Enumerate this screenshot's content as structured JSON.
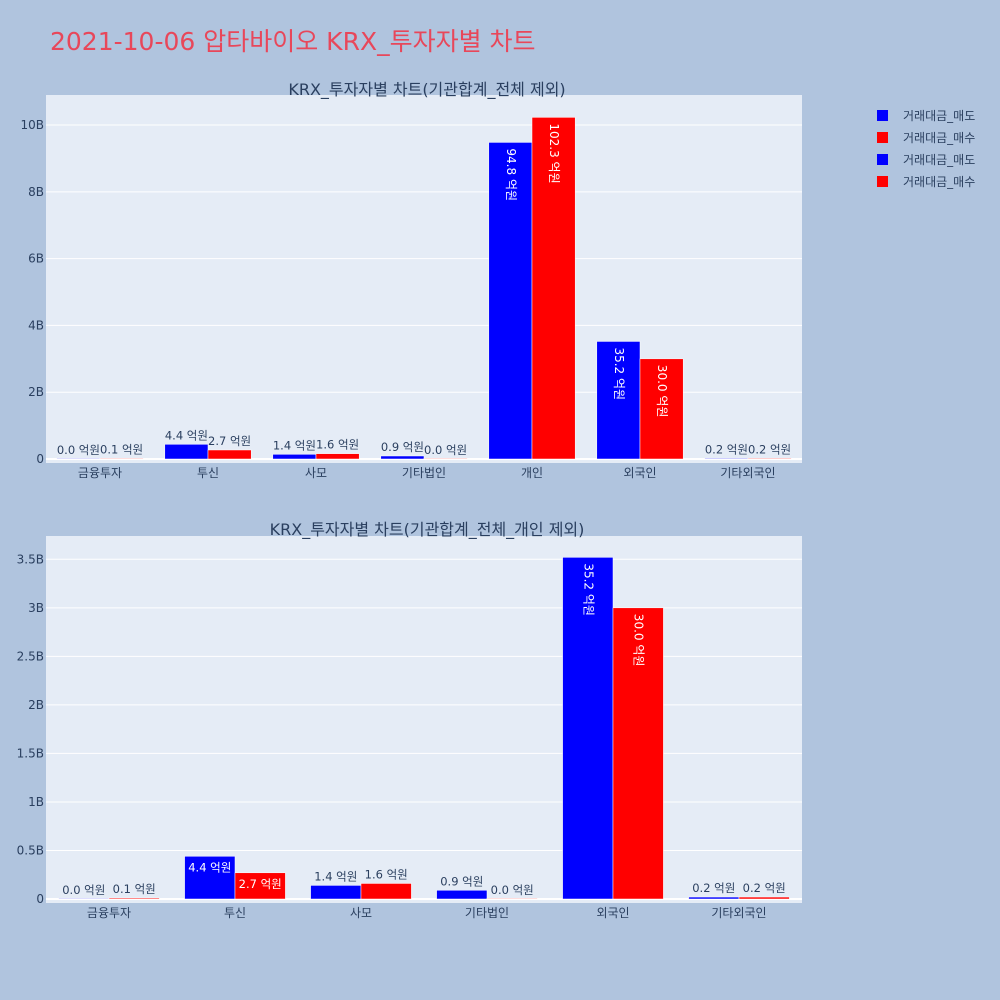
{
  "title": "2021-10-06 압타바이오 KRX_투자자별 차트",
  "colors": {
    "sell": "#0000ff",
    "buy": "#ff0000",
    "title": "#e8475a",
    "plot_bg": "#e5ecf6",
    "page_bg": "#b0c4de"
  },
  "legend": [
    {
      "label": "거래대금_매도",
      "color": "#0000ff"
    },
    {
      "label": "거래대금_매수",
      "color": "#ff0000"
    },
    {
      "label": "거래대금_매도",
      "color": "#0000ff"
    },
    {
      "label": "거래대금_매수",
      "color": "#ff0000"
    }
  ],
  "chart_data": [
    {
      "type": "bar",
      "title": "KRX_투자자별 차트(기관합계_전체 제외)",
      "categories": [
        "금융투자",
        "투신",
        "사모",
        "기타법인",
        "개인",
        "외국인",
        "기타외국인"
      ],
      "ylim": [
        0,
        10900000000
      ],
      "yticks": [
        0,
        2000000000,
        4000000000,
        6000000000,
        8000000000,
        10000000000
      ],
      "ytick_labels": [
        "0",
        "2B",
        "4B",
        "6B",
        "8B",
        "10B"
      ],
      "grid": true,
      "legend_position": "top-right",
      "series": [
        {
          "name": "거래대금_매도",
          "color": "#0000ff",
          "values": [
            0,
            440000000,
            140000000,
            90000000,
            9480000000,
            3520000000,
            20000000
          ],
          "labels": [
            "0.0 억원",
            "4.4 억원",
            "1.4 억원",
            "0.9 억원",
            "94.8 억원",
            "35.2 억원",
            "0.2 억원"
          ]
        },
        {
          "name": "거래대금_매수",
          "color": "#ff0000",
          "values": [
            10000000,
            270000000,
            160000000,
            0,
            10230000000,
            3000000000,
            20000000
          ],
          "labels": [
            "0.1 억원",
            "2.7 억원",
            "1.6 억원",
            "0.0 억원",
            "102.3 억원",
            "30.0 억원",
            "0.2 억원"
          ]
        }
      ]
    },
    {
      "type": "bar",
      "title": "KRX_투자자별 차트(기관합계_전체_개인 제외)",
      "categories": [
        "금융투자",
        "투신",
        "사모",
        "기타법인",
        "외국인",
        "기타외국인"
      ],
      "ylim": [
        0,
        3740000000
      ],
      "yticks": [
        0,
        500000000,
        1000000000,
        1500000000,
        2000000000,
        2500000000,
        3000000000,
        3500000000
      ],
      "ytick_labels": [
        "0",
        "0.5B",
        "1B",
        "1.5B",
        "2B",
        "2.5B",
        "3B",
        "3.5B"
      ],
      "grid": true,
      "legend_position": "top-right",
      "series": [
        {
          "name": "거래대금_매도",
          "color": "#0000ff",
          "values": [
            0,
            440000000,
            140000000,
            90000000,
            3520000000,
            20000000
          ],
          "labels": [
            "0.0 억원",
            "4.4 억원",
            "1.4 억원",
            "0.9 억원",
            "35.2 억원",
            "0.2 억원"
          ]
        },
        {
          "name": "거래대금_매수",
          "color": "#ff0000",
          "values": [
            10000000,
            270000000,
            160000000,
            0,
            3000000000,
            20000000
          ],
          "labels": [
            "0.1 억원",
            "2.7 억원",
            "1.6 억원",
            "0.0 억원",
            "30.0 억원",
            "0.2 억원"
          ]
        }
      ]
    }
  ]
}
